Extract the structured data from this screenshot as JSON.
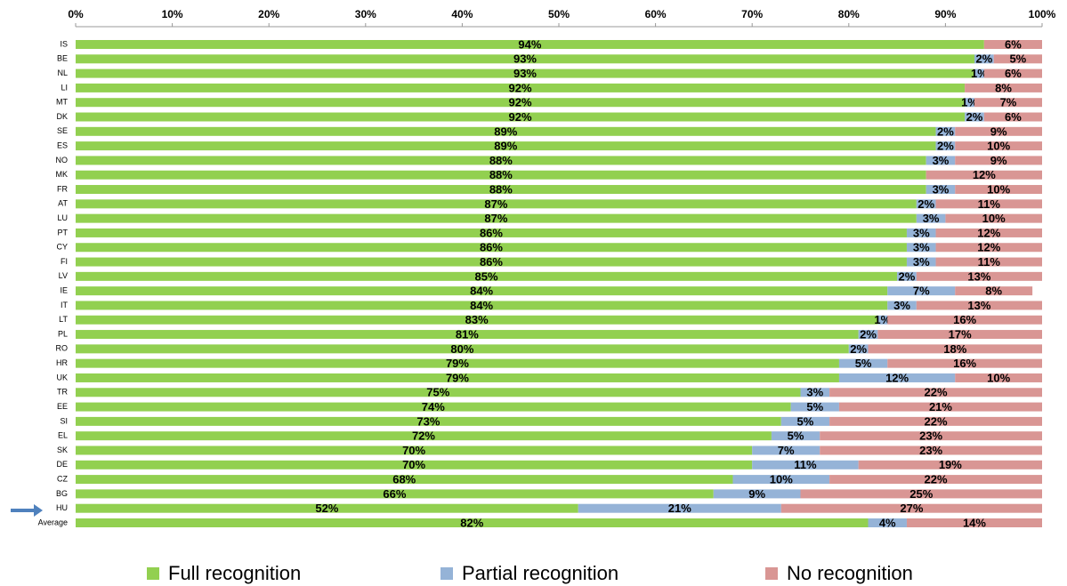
{
  "chart_data": {
    "type": "stacked-barh",
    "categories": [
      "IS",
      "BE",
      "NL",
      "LI",
      "MT",
      "DK",
      "SE",
      "ES",
      "NO",
      "MK",
      "FR",
      "AT",
      "LU",
      "PT",
      "CY",
      "FI",
      "LV",
      "IE",
      "IT",
      "LT",
      "PL",
      "RO",
      "HR",
      "UK",
      "TR",
      "EE",
      "SI",
      "EL",
      "SK",
      "DE",
      "CZ",
      "BG",
      "HU",
      "Average"
    ],
    "series": [
      {
        "name": "Full recognition",
        "color": "#92d050",
        "values": [
          94,
          93,
          93,
          92,
          92,
          92,
          89,
          89,
          88,
          88,
          88,
          87,
          87,
          86,
          86,
          86,
          85,
          84,
          84,
          83,
          81,
          80,
          79,
          79,
          75,
          74,
          73,
          72,
          70,
          70,
          68,
          66,
          52,
          82
        ],
        "value_labels": [
          "94%",
          "93%",
          "93%",
          "92%",
          "92%",
          "92%",
          "89%",
          "89%",
          "88%",
          "88%",
          "88%",
          "87%",
          "87%",
          "86%",
          "86%",
          "86%",
          "85%",
          "84%",
          "84%",
          "83%",
          "81%",
          "80%",
          "79%",
          "79%",
          "75%",
          "74%",
          "73%",
          "72%",
          "70%",
          "70%",
          "68%",
          "66%",
          "52%",
          "82%"
        ]
      },
      {
        "name": "Partial recognition",
        "color": "#95b3d7",
        "values": [
          null,
          2,
          1,
          null,
          1,
          2,
          2,
          2,
          3,
          null,
          3,
          2,
          3,
          3,
          3,
          3,
          2,
          7,
          3,
          1,
          2,
          2,
          5,
          12,
          3,
          5,
          5,
          5,
          7,
          11,
          10,
          9,
          21,
          4
        ],
        "value_labels": [
          null,
          "2%",
          "1%",
          null,
          "1%",
          "2%",
          "2%",
          "2%",
          "3%",
          null,
          "3%",
          "2%",
          "3%",
          "3%",
          "3%",
          "3%",
          "2%",
          "7%",
          "3%",
          "1%",
          "2%",
          "2%",
          "5%",
          "12%",
          "3%",
          "5%",
          "5%",
          "5%",
          "7%",
          "11%",
          "10%",
          "9%",
          "21%",
          "4%"
        ]
      },
      {
        "name": "No recognition",
        "color": "#d99694",
        "values": [
          6,
          5,
          6,
          8,
          7,
          6,
          9,
          10,
          9,
          12,
          10,
          11,
          10,
          12,
          12,
          11,
          13,
          8,
          13,
          16,
          17,
          18,
          16,
          10,
          22,
          21,
          22,
          23,
          23,
          19,
          22,
          25,
          27,
          14
        ],
        "value_labels": [
          "6%",
          "5%",
          "6%",
          "8%",
          "7%",
          "6%",
          "9%",
          "10%",
          "9%",
          "12%",
          "10%",
          "11%",
          "10%",
          "12%",
          "12%",
          "11%",
          "13%",
          "8%",
          "13%",
          "16%",
          "17%",
          "18%",
          "16%",
          "10%",
          "22%",
          "21%",
          "22%",
          "23%",
          "23%",
          "19%",
          "22%",
          "25%",
          "27%",
          "14%"
        ]
      }
    ],
    "xlim": [
      0,
      100
    ],
    "xticks": [
      {
        "value": 0,
        "label": "0%"
      },
      {
        "value": 10,
        "label": "10%"
      },
      {
        "value": 20,
        "label": "20%"
      },
      {
        "value": 30,
        "label": "30%"
      },
      {
        "value": 40,
        "label": "40%"
      },
      {
        "value": 50,
        "label": "50%"
      },
      {
        "value": 60,
        "label": "60%"
      },
      {
        "value": 70,
        "label": "70%"
      },
      {
        "value": 80,
        "label": "80%"
      },
      {
        "value": 90,
        "label": "90%"
      },
      {
        "value": 100,
        "label": "100%"
      }
    ],
    "legend": "bottom"
  }
}
